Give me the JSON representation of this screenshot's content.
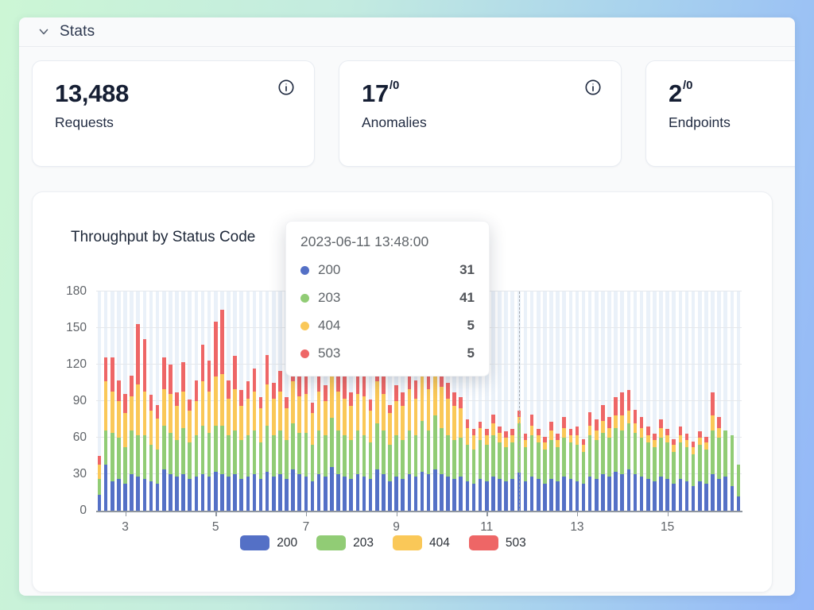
{
  "page": {
    "section_title": "Stats"
  },
  "icons": {
    "collapse": "chevron-down",
    "stat_info": "info-circle"
  },
  "colors": {
    "page_gradient_left": "#ccf6d5",
    "page_gradient_right": "#93b7f8",
    "panel_bg": "#f9fafb",
    "card_bg": "#ffffff",
    "band_bg": "#eaf1f9",
    "series_200": "#5470c6",
    "series_203": "#91cc75",
    "series_404": "#fac858",
    "series_503": "#ee6666"
  },
  "stat_cards": [
    {
      "value": "13,488",
      "suffix": "",
      "label": "Requests"
    },
    {
      "value": "17",
      "suffix": "/0",
      "label": "Anomalies"
    },
    {
      "value": "2",
      "suffix": "/0",
      "label": "Endpoints"
    }
  ],
  "chart_card": {
    "title": "Throughput by Status Code"
  },
  "tooltip": {
    "timestamp": "2023-06-11 13:48:00",
    "rows": [
      {
        "label": "200",
        "value": "31",
        "color": "#5470c6"
      },
      {
        "label": "203",
        "value": "41",
        "color": "#91cc75"
      },
      {
        "label": "404",
        "value": "5",
        "color": "#fac858"
      },
      {
        "label": "503",
        "value": "5",
        "color": "#ee6666"
      }
    ]
  },
  "chart_data": {
    "type": "bar",
    "stacked": true,
    "title": "Throughput by Status Code",
    "xlabel": "",
    "ylabel": "",
    "ylim": [
      0,
      180
    ],
    "y_ticks": [
      0,
      30,
      60,
      90,
      120,
      150,
      180
    ],
    "x_tick_labels": [
      "3",
      "5",
      "7",
      "9",
      "11",
      "13",
      "15"
    ],
    "x_tick_slots": [
      4,
      18,
      32,
      46,
      60,
      74,
      88
    ],
    "legend": [
      "200",
      "203",
      "404",
      "503"
    ],
    "legend_position": "bottom",
    "grid": true,
    "background_bands": true,
    "hover_index": 65,
    "hover_values": {
      "200": 31,
      "203": 41,
      "404": 5,
      "503": 5
    },
    "series": [
      {
        "name": "200",
        "color": "#5470c6",
        "values": [
          13,
          38,
          24,
          26,
          22,
          30,
          28,
          26,
          24,
          22,
          34,
          30,
          28,
          30,
          26,
          28,
          30,
          28,
          32,
          30,
          28,
          30,
          26,
          28,
          30,
          26,
          32,
          28,
          30,
          26,
          34,
          30,
          28,
          24,
          30,
          28,
          36,
          30,
          28,
          26,
          30,
          28,
          26,
          34,
          30,
          24,
          28,
          26,
          30,
          28,
          32,
          30,
          34,
          30,
          28,
          26,
          28,
          24,
          22,
          26,
          24,
          28,
          26,
          24,
          26,
          31,
          24,
          28,
          26,
          22,
          26,
          24,
          28,
          26,
          24,
          22,
          28,
          26,
          30,
          28,
          32,
          30,
          34,
          30,
          28,
          26,
          24,
          28,
          26,
          22,
          26,
          24,
          20,
          24,
          22,
          30,
          26,
          28,
          20,
          12
        ]
      },
      {
        "name": "203",
        "color": "#91cc75",
        "values": [
          13,
          28,
          40,
          34,
          30,
          36,
          34,
          36,
          30,
          28,
          36,
          34,
          30,
          38,
          30,
          34,
          40,
          36,
          38,
          40,
          34,
          36,
          32,
          34,
          36,
          30,
          38,
          34,
          36,
          32,
          38,
          34,
          36,
          30,
          36,
          34,
          40,
          36,
          34,
          32,
          36,
          34,
          30,
          38,
          36,
          30,
          34,
          32,
          36,
          34,
          42,
          36,
          44,
          38,
          34,
          32,
          32,
          30,
          28,
          32,
          30,
          34,
          30,
          28,
          30,
          41,
          28,
          34,
          30,
          28,
          32,
          28,
          32,
          30,
          30,
          26,
          34,
          32,
          34,
          32,
          36,
          36,
          38,
          34,
          32,
          30,
          28,
          32,
          30,
          26,
          30,
          28,
          26,
          30,
          28,
          36,
          34,
          38,
          42,
          26
        ]
      },
      {
        "name": "404",
        "color": "#fac858",
        "values": [
          12,
          40,
          34,
          30,
          28,
          28,
          42,
          36,
          28,
          26,
          30,
          32,
          28,
          30,
          26,
          28,
          36,
          34,
          40,
          42,
          30,
          34,
          28,
          30,
          32,
          28,
          34,
          30,
          32,
          26,
          34,
          30,
          32,
          26,
          32,
          28,
          36,
          32,
          30,
          28,
          30,
          32,
          26,
          34,
          30,
          26,
          28,
          28,
          34,
          30,
          40,
          34,
          42,
          34,
          30,
          28,
          24,
          14,
          12,
          10,
          8,
          10,
          8,
          8,
          6,
          5,
          6,
          8,
          6,
          6,
          8,
          6,
          8,
          6,
          8,
          6,
          8,
          8,
          10,
          8,
          10,
          12,
          10,
          8,
          8,
          6,
          6,
          8,
          6,
          6,
          6,
          6,
          6,
          6,
          6,
          12,
          8,
          0,
          0,
          0
        ]
      },
      {
        "name": "503",
        "color": "#ee6666",
        "values": [
          7,
          20,
          28,
          17,
          16,
          17,
          49,
          43,
          13,
          11,
          26,
          24,
          11,
          24,
          9,
          17,
          30,
          25,
          45,
          53,
          15,
          27,
          13,
          14,
          19,
          9,
          24,
          13,
          17,
          9,
          28,
          17,
          23,
          9,
          19,
          13,
          35,
          21,
          37,
          11,
          17,
          23,
          9,
          28,
          31,
          7,
          13,
          11,
          25,
          15,
          43,
          27,
          45,
          23,
          13,
          11,
          9,
          7,
          5,
          5,
          5,
          7,
          5,
          5,
          5,
          5,
          5,
          9,
          5,
          5,
          7,
          5,
          9,
          5,
          7,
          5,
          11,
          9,
          13,
          9,
          15,
          19,
          17,
          11,
          9,
          7,
          5,
          7,
          5,
          5,
          7,
          5,
          5,
          5,
          5,
          19,
          9,
          0,
          0,
          0
        ]
      }
    ]
  }
}
